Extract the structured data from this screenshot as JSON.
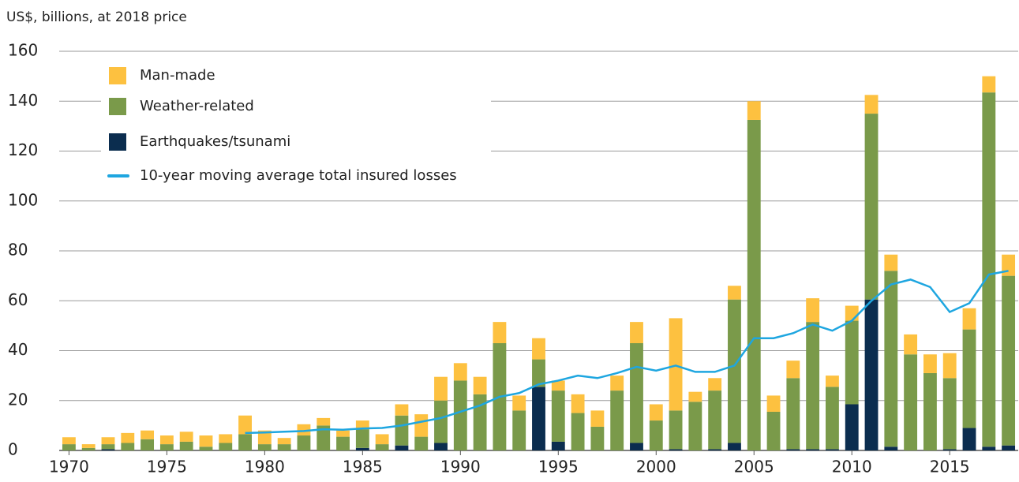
{
  "chart_data": {
    "type": "bar",
    "stacked": true,
    "ylabel": "US$, billions, at 2018 price",
    "x": [
      1970,
      1971,
      1972,
      1973,
      1974,
      1975,
      1976,
      1977,
      1978,
      1979,
      1980,
      1981,
      1982,
      1983,
      1984,
      1985,
      1986,
      1987,
      1988,
      1989,
      1990,
      1991,
      1992,
      1993,
      1994,
      1995,
      1996,
      1997,
      1998,
      1999,
      2000,
      2001,
      2002,
      2003,
      2004,
      2005,
      2006,
      2007,
      2008,
      2009,
      2010,
      2011,
      2012,
      2013,
      2014,
      2015,
      2016,
      2017,
      2018
    ],
    "series": [
      {
        "name": "Earthquakes/tsunami",
        "color": "#0b2d4f",
        "type": "bar",
        "values": [
          0,
          0,
          0.5,
          0,
          0,
          0,
          0,
          0,
          0,
          0,
          0,
          0,
          0,
          0,
          0,
          1,
          0,
          2,
          0,
          3,
          0,
          0,
          0,
          0,
          25.5,
          3.5,
          0,
          0,
          0,
          3,
          0,
          0.5,
          0,
          0.5,
          3,
          0,
          0,
          0.5,
          0.5,
          0.5,
          18.5,
          60.5,
          1.5,
          0,
          0,
          0.5,
          9,
          1.5,
          2
        ]
      },
      {
        "name": "Weather-related",
        "color": "#7a9a4a",
        "type": "bar",
        "values": [
          2.5,
          1,
          2,
          3,
          4.5,
          2.5,
          3.5,
          1.5,
          3,
          6.5,
          2.5,
          2.5,
          6,
          10,
          5.5,
          7.5,
          2.5,
          12,
          5.5,
          17,
          28,
          22.5,
          43,
          16,
          11,
          20.5,
          15,
          9.5,
          24,
          40,
          12,
          15.5,
          19.5,
          23.5,
          57.5,
          132.5,
          15.5,
          28.5,
          51,
          25,
          33.5,
          74.5,
          70.5,
          38.5,
          31,
          28.5,
          39.5,
          142,
          68
        ]
      },
      {
        "name": "Man-made",
        "color": "#fdc140",
        "type": "bar",
        "values": [
          2.8,
          1.5,
          2.8,
          4,
          3.5,
          3.5,
          4,
          4.5,
          3.5,
          7.5,
          5.5,
          2.5,
          4.5,
          3,
          2.5,
          3.5,
          4,
          4.5,
          9,
          9.5,
          7,
          7,
          8.5,
          6,
          8.5,
          4,
          7.5,
          6.5,
          6,
          8.5,
          6.5,
          37,
          4,
          5,
          5.5,
          7.5,
          6.5,
          7,
          9.5,
          4.5,
          6,
          7.5,
          6.5,
          8,
          7.5,
          10,
          8.5,
          6.5,
          8.5
        ]
      },
      {
        "name": "10-year moving average total insured losses",
        "color": "#1ea6e0",
        "type": "line",
        "values": [
          null,
          null,
          null,
          null,
          null,
          null,
          null,
          null,
          null,
          7,
          7.2,
          7.5,
          7.8,
          8.5,
          8.3,
          8.8,
          9,
          10,
          11.5,
          13,
          15.5,
          18,
          21.5,
          23,
          26.5,
          28,
          30,
          29,
          31,
          33.5,
          32,
          34,
          31.5,
          31.5,
          34,
          45,
          45,
          47,
          50.5,
          48,
          52,
          60,
          66.5,
          68.5,
          65.5,
          55.5,
          59,
          70.5,
          72
        ]
      }
    ],
    "xlim": [
      1969.5,
      2018.5
    ],
    "xticks": [
      1970,
      1975,
      1980,
      1985,
      1990,
      1995,
      2000,
      2005,
      2010,
      2015
    ],
    "ylim": [
      0,
      160
    ],
    "yticks": [
      0,
      20,
      40,
      60,
      80,
      100,
      120,
      140,
      160
    ],
    "grid": true,
    "legend": "upper left"
  }
}
